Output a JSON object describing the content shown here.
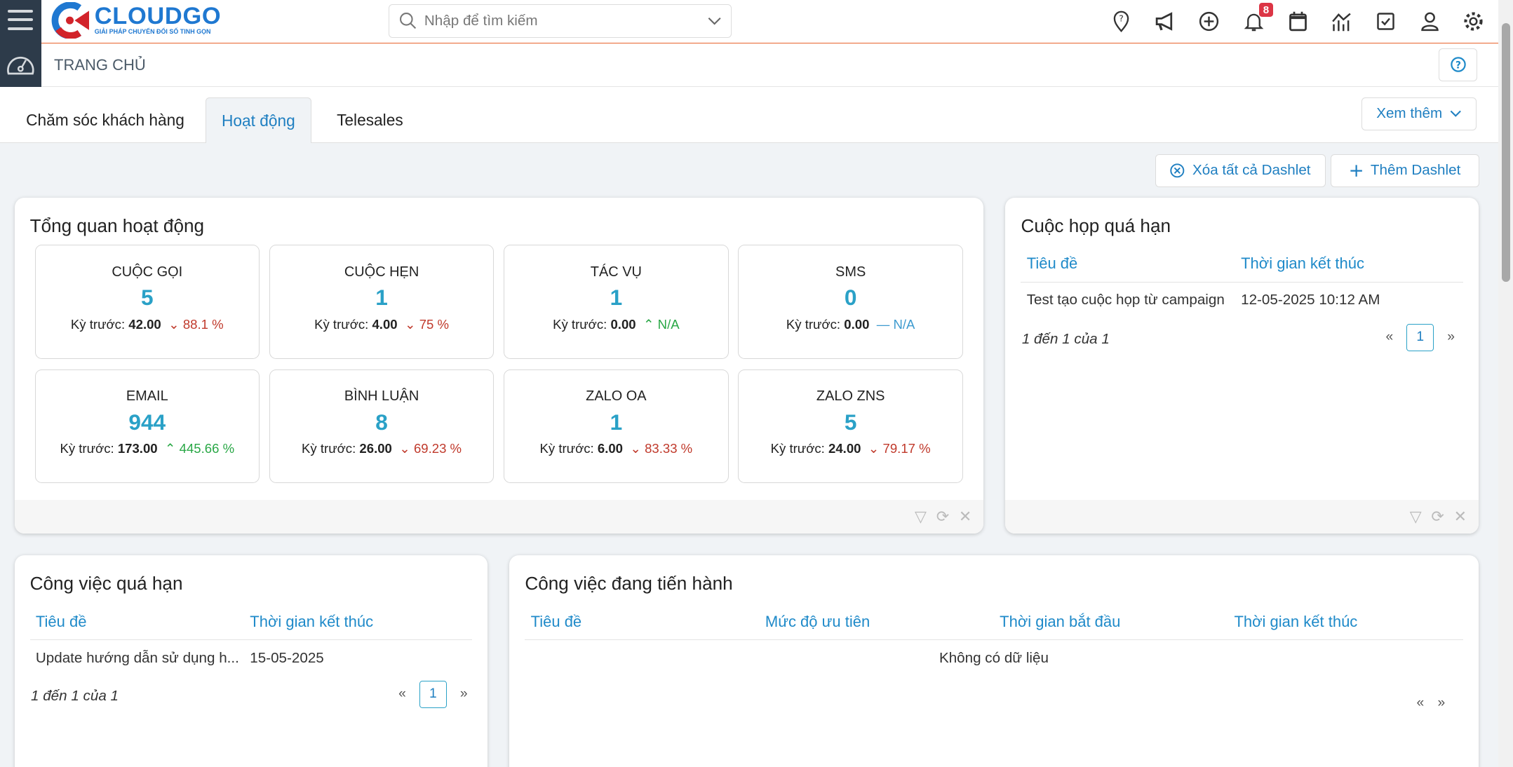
{
  "header": {
    "logo_name": "CLOUDGO",
    "logo_tagline": "GIẢI PHÁP CHUYỂN ĐỔI SỐ TINH GỌN",
    "search_placeholder": "Nhập để tìm kiếm",
    "notification_count": "8",
    "icons": [
      "map-pin-help-icon",
      "megaphone-icon",
      "plus-circle-icon",
      "bell-icon",
      "calendar-icon",
      "chart-icon",
      "checkbox-icon",
      "user-icon",
      "gear-icon"
    ]
  },
  "breadcrumb": {
    "title": "TRANG CHỦ"
  },
  "tabs": [
    {
      "label": "Chăm sóc khách hàng"
    },
    {
      "label": "Hoạt động",
      "active": true
    },
    {
      "label": "Telesales"
    }
  ],
  "more_label": "Xem thêm",
  "actions": {
    "clear_all": "Xóa tất cả Dashlet",
    "add": "Thêm Dashlet"
  },
  "overview": {
    "title": "Tổng quan hoạt động",
    "prev_label": "Kỳ trước:",
    "cards": [
      {
        "label": "CUỘC GỌI",
        "value": "5",
        "prev": "42.00",
        "change": "88.1 %",
        "trend": "down"
      },
      {
        "label": "CUỘC HẸN",
        "value": "1",
        "prev": "4.00",
        "change": "75 %",
        "trend": "down"
      },
      {
        "label": "TÁC VỤ",
        "value": "1",
        "prev": "0.00",
        "change": "N/A",
        "trend": "up"
      },
      {
        "label": "SMS",
        "value": "0",
        "prev": "0.00",
        "change": "N/A",
        "trend": "flat"
      },
      {
        "label": "EMAIL",
        "value": "944",
        "prev": "173.00",
        "change": "445.66 %",
        "trend": "up"
      },
      {
        "label": "BÌNH LUẬN",
        "value": "8",
        "prev": "26.00",
        "change": "69.23 %",
        "trend": "down"
      },
      {
        "label": "ZALO OA",
        "value": "1",
        "prev": "6.00",
        "change": "83.33 %",
        "trend": "down"
      },
      {
        "label": "ZALO ZNS",
        "value": "5",
        "prev": "24.00",
        "change": "79.17 %",
        "trend": "down"
      }
    ]
  },
  "overdue_meetings": {
    "title": "Cuộc họp quá hạn",
    "columns": [
      "Tiêu đề",
      "Thời gian kết thúc"
    ],
    "rows": [
      [
        "Test tạo cuộc họp từ campaign",
        "12-05-2025 10:12 AM"
      ]
    ],
    "count": "1 đến 1 của 1",
    "page": "1"
  },
  "overdue_tasks": {
    "title": "Công việc quá hạn",
    "columns": [
      "Tiêu đề",
      "Thời gian kết thúc"
    ],
    "rows": [
      [
        "Update hướng dẫn sử dụng h...",
        "15-05-2025"
      ]
    ],
    "count": "1 đến 1 của 1",
    "page": "1"
  },
  "inprogress_tasks": {
    "title": "Công việc đang tiến hành",
    "columns": [
      "Tiêu đề",
      "Mức độ ưu tiên",
      "Thời gian bắt đầu",
      "Thời gian kết thúc"
    ],
    "empty": "Không có dữ liệu"
  },
  "pager": {
    "prev": "«",
    "next": "»"
  },
  "colors": {
    "accent": "#1f7fc1",
    "value": "#2aa1c7",
    "down": "#c0392b",
    "up": "#28a745",
    "topbar_border": "#e8622c",
    "sidebar": "#2d3b4a"
  }
}
